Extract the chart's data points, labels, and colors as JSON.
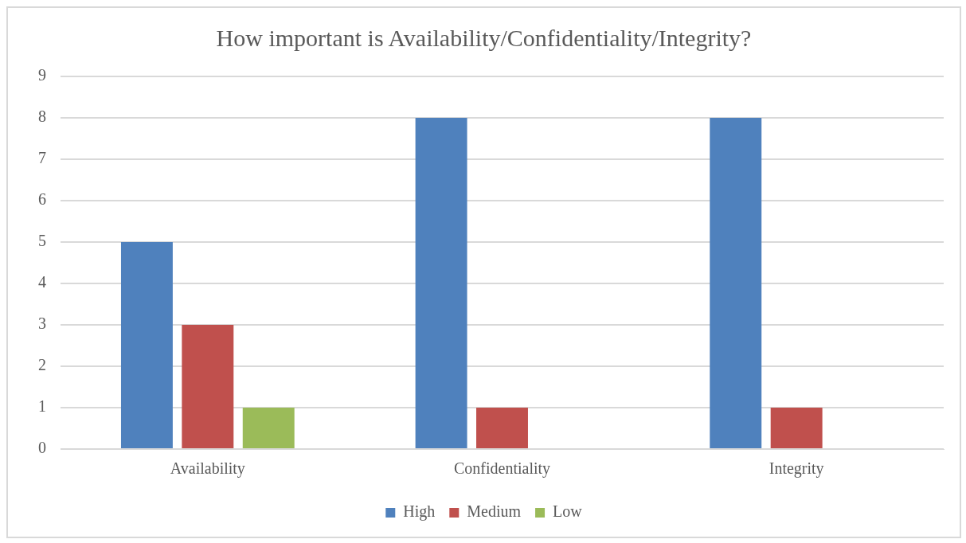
{
  "chart_data": {
    "type": "bar",
    "title": "How important is Availability/Confidentiality/Integrity?",
    "categories": [
      "Availability",
      "Confidentiality",
      "Integrity"
    ],
    "series": [
      {
        "name": "High",
        "color": "#4f81bd",
        "values": [
          5,
          8,
          8
        ]
      },
      {
        "name": "Medium",
        "color": "#c0504d",
        "values": [
          3,
          1,
          1
        ]
      },
      {
        "name": "Low",
        "color": "#9bbb59",
        "values": [
          1,
          0,
          0
        ]
      }
    ],
    "ylim": [
      0,
      9
    ],
    "yticks": [
      0,
      1,
      2,
      3,
      4,
      5,
      6,
      7,
      8,
      9
    ],
    "grid": "y",
    "legend": "bottom"
  }
}
